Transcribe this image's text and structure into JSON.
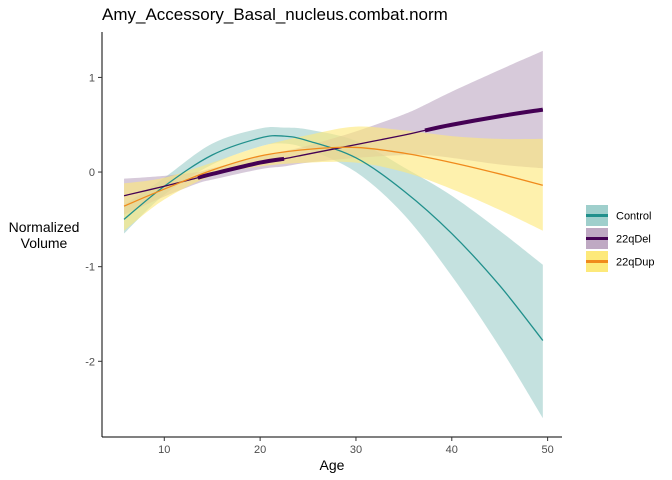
{
  "chart_data": {
    "type": "line",
    "title": "Amy_Accessory_Basal_nucleus.combat.norm",
    "xlabel": "Age",
    "ylabel": [
      "Normalized",
      "Volume"
    ],
    "xlim": [
      3.5,
      51.5
    ],
    "ylim": [
      -2.8,
      1.48
    ],
    "xticks": [
      10,
      20,
      30,
      40,
      50
    ],
    "yticks": [
      -2,
      -1,
      0,
      1
    ],
    "grid": false,
    "legend_position": "right",
    "series": [
      {
        "name": "Control",
        "color": "#21908C",
        "fill": "#9FCFCC",
        "x": [
          5.8,
          10,
          15,
          20,
          22.5,
          25,
          30,
          35,
          40,
          45,
          49.5
        ],
        "y": [
          -0.5,
          -0.15,
          0.18,
          0.36,
          0.38,
          0.33,
          0.15,
          -0.2,
          -0.65,
          -1.2,
          -1.78
        ],
        "lower": [
          -0.65,
          -0.24,
          0.08,
          0.27,
          0.3,
          0.24,
          0.0,
          -0.45,
          -1.1,
          -1.85,
          -2.6
        ],
        "upper": [
          -0.35,
          -0.06,
          0.3,
          0.46,
          0.47,
          0.45,
          0.33,
          0.05,
          -0.25,
          -0.62,
          -0.98
        ],
        "sig_x": []
      },
      {
        "name": "22qDel",
        "color": "#440154",
        "fill": "#BFA9C3",
        "x": [
          5.8,
          10,
          13.5,
          15,
          20,
          22.5,
          25,
          30,
          35,
          37.2,
          40,
          45,
          49.5
        ],
        "y": [
          -0.25,
          -0.15,
          -0.06,
          -0.02,
          0.1,
          0.14,
          0.19,
          0.29,
          0.39,
          0.44,
          0.5,
          0.59,
          0.66
        ],
        "lower": [
          -0.45,
          -0.26,
          -0.12,
          -0.08,
          0.03,
          0.06,
          0.1,
          0.15,
          0.18,
          0.18,
          0.15,
          0.08,
          0.04
        ],
        "upper": [
          -0.07,
          -0.04,
          0.0,
          0.04,
          0.17,
          0.22,
          0.28,
          0.43,
          0.61,
          0.71,
          0.85,
          1.08,
          1.28
        ],
        "sig_x": [
          [
            13.5,
            22.5
          ],
          [
            37.2,
            49.5
          ]
        ]
      },
      {
        "name": "22qDup",
        "color": "#F08A1C",
        "fill": "#FDE97A",
        "x": [
          5.8,
          10,
          15,
          20,
          25,
          30,
          35,
          40,
          45,
          49.5
        ],
        "y": [
          -0.36,
          -0.18,
          0.02,
          0.17,
          0.24,
          0.26,
          0.2,
          0.1,
          -0.02,
          -0.14
        ],
        "lower": [
          -0.62,
          -0.29,
          -0.04,
          0.06,
          0.1,
          0.1,
          0.0,
          -0.18,
          -0.4,
          -0.62
        ],
        "upper": [
          -0.12,
          -0.06,
          0.1,
          0.27,
          0.39,
          0.48,
          0.44,
          0.38,
          0.35,
          0.35
        ],
        "sig_x": []
      }
    ]
  }
}
